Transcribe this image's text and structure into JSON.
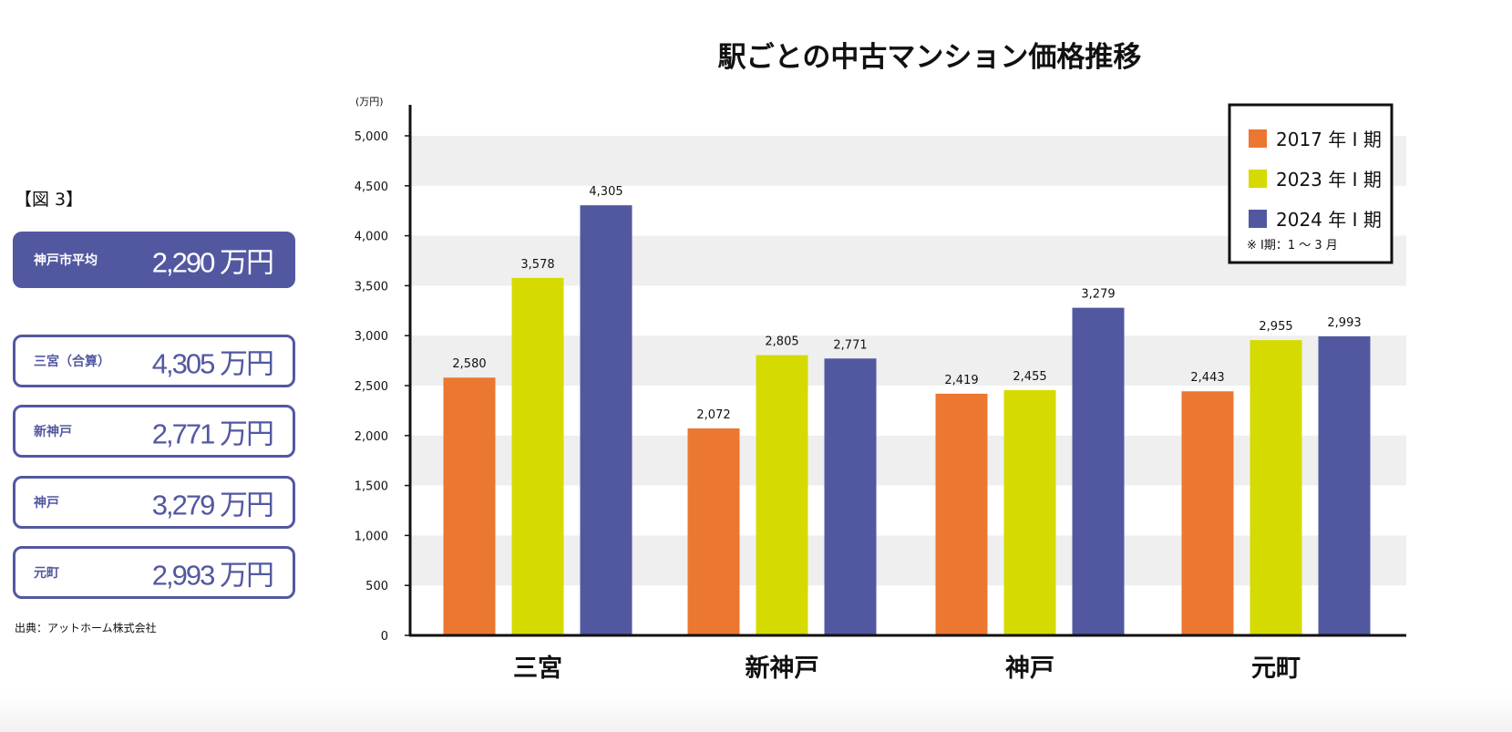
{
  "figure_label": "【図 3】",
  "summary": {
    "average": {
      "label": "神戸市平均",
      "value": "2,290 万円"
    },
    "stations": [
      {
        "label": "三宮（合算）",
        "value": "4,305 万円"
      },
      {
        "label": "新神戸",
        "value": "2,771 万円"
      },
      {
        "label": "神戸",
        "value": "3,279 万円"
      },
      {
        "label": "元町",
        "value": "2,993 万円"
      }
    ]
  },
  "source": "出典：アットホーム株式会社",
  "chart_data": {
    "type": "bar",
    "title": "駅ごとの中古マンション価格推移",
    "ylabel": "(万円)",
    "xlabel": "",
    "ylim": [
      0,
      5000
    ],
    "yticks": [
      0,
      500,
      1000,
      1500,
      2000,
      2500,
      3000,
      3500,
      4000,
      4500,
      5000
    ],
    "ytick_labels": [
      "0",
      "500",
      "1,000",
      "1,500",
      "2,000",
      "2,500",
      "3,000",
      "3,500",
      "4,000",
      "4,500",
      "5,000"
    ],
    "categories": [
      "三宮",
      "新神戸",
      "神戸",
      "元町"
    ],
    "series": [
      {
        "name": "2017 年 I 期",
        "color": "#ec7731",
        "values": [
          2580,
          2072,
          2419,
          2443
        ],
        "labels": [
          "2,580",
          "2,072",
          "2,419",
          "2,443"
        ]
      },
      {
        "name": "2023 年 I 期",
        "color": "#d5db00",
        "values": [
          3578,
          2805,
          2455,
          2955
        ],
        "labels": [
          "3,578",
          "2,805",
          "2,455",
          "2,955"
        ]
      },
      {
        "name": "2024 年 I 期",
        "color": "#5258a0",
        "values": [
          4305,
          2771,
          3279,
          2993
        ],
        "labels": [
          "4,305",
          "2,771",
          "3,279",
          "2,993"
        ]
      }
    ],
    "legend_note": "※ I期：1 〜 3 月",
    "legend_position": "top-right",
    "grid": "alternating bands"
  }
}
